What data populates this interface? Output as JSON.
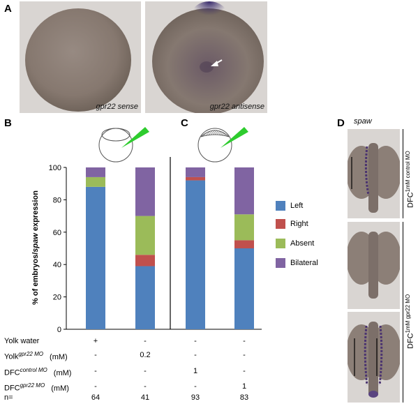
{
  "panels": {
    "a": "A",
    "b": "B",
    "c": "C",
    "d": "D"
  },
  "panel_a": {
    "left_caption": "gpr22 sense",
    "right_caption": "gpr22 antisense"
  },
  "panel_d": {
    "title": "spaw",
    "label_top_main": "DFC",
    "label_top_sup": "1mM control MO",
    "label_bottom_main": "DFC",
    "label_bottom_sup": "1mM gpr22 MO"
  },
  "chart_data": {
    "type": "bar",
    "stacked": true,
    "ylabel_prefix": "% of embryos/",
    "ylabel_italic": "spaw",
    "ylabel_suffix": " expression",
    "ylim": [
      0,
      100
    ],
    "yticks": [
      0,
      20,
      40,
      60,
      80,
      100
    ],
    "categories": [
      "Yolk water",
      "Yolk gpr22 MO 0.2 mM",
      "DFC control MO 1 mM",
      "DFC gpr22 MO 1 mM"
    ],
    "series": [
      {
        "name": "Left",
        "color": "#4f81bd",
        "values": [
          88,
          39,
          92,
          50
        ]
      },
      {
        "name": "Right",
        "color": "#c0504d",
        "values": [
          0,
          7,
          2,
          5
        ]
      },
      {
        "name": "Absent",
        "color": "#9bbb59",
        "values": [
          6,
          24,
          0,
          16
        ]
      },
      {
        "name": "Bilateral",
        "color": "#8064a2",
        "values": [
          6,
          30,
          6,
          29
        ]
      }
    ],
    "legend_position": "right"
  },
  "conditions": {
    "rows": [
      {
        "label": "Yolk water",
        "sup": "",
        "unit": "",
        "values": [
          "+",
          "-",
          "-",
          "-"
        ]
      },
      {
        "label": "Yolk",
        "sup": "gpr22 MO",
        "unit": "(mM)",
        "values": [
          "-",
          "0.2",
          "-",
          "-"
        ]
      },
      {
        "label": "DFC",
        "sup": "control MO",
        "unit": "(mM)",
        "values": [
          "-",
          "-",
          "1",
          "-"
        ]
      },
      {
        "label": "DFC",
        "sup": "gpr22 MO",
        "unit": "(mM)",
        "values": [
          "-",
          "-",
          "-",
          "1"
        ]
      },
      {
        "label": "n=",
        "sup": "",
        "unit": "",
        "values": [
          "64",
          "41",
          "93",
          "83"
        ]
      }
    ]
  },
  "colors": {
    "embryo_fill": "#8a7c74",
    "micrograph_bg": "#d8d4d1",
    "stain": "#3c2a6e"
  }
}
